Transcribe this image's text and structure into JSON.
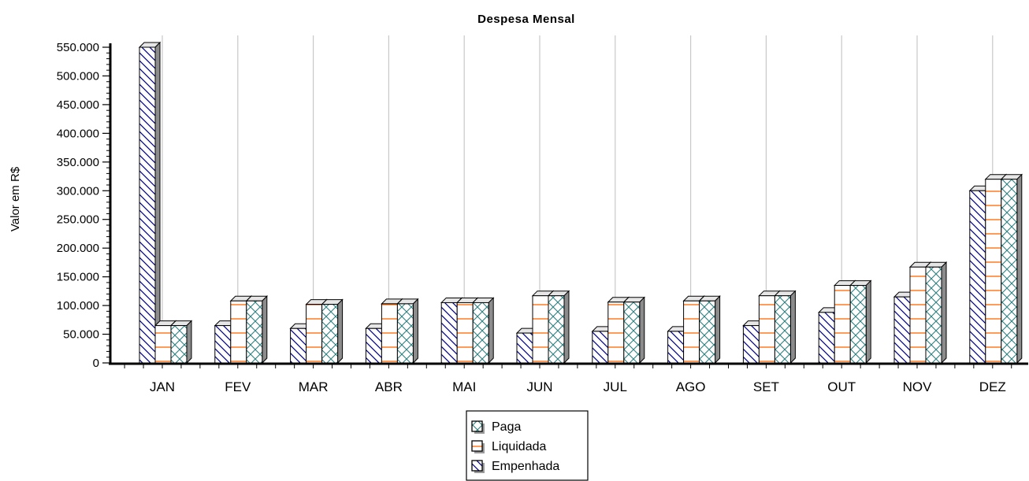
{
  "chart_data": {
    "type": "bar",
    "title": "Despesa Mensal",
    "xlabel": "",
    "ylabel": "Valor em R$",
    "ylim": [
      0,
      550000
    ],
    "yticks": [
      0,
      50000,
      100000,
      150000,
      200000,
      250000,
      300000,
      350000,
      400000,
      450000,
      500000,
      550000
    ],
    "ytick_labels": [
      "0",
      "50.000",
      "100.000",
      "150.000",
      "200.000",
      "250.000",
      "300.000",
      "350.000",
      "400.000",
      "450.000",
      "500.000",
      "550.000"
    ],
    "categories": [
      "JAN",
      "FEV",
      "MAR",
      "ABR",
      "MAI",
      "JUN",
      "JUL",
      "AGO",
      "SET",
      "OUT",
      "NOV",
      "DEZ"
    ],
    "grid": "vertical",
    "legend_position": "bottom-center",
    "series": [
      {
        "name": "Empenhada",
        "color": "#000080",
        "pattern": "diagonal",
        "values": [
          550000,
          65000,
          60000,
          60000,
          105000,
          52000,
          55000,
          55000,
          65000,
          88000,
          115000,
          300000
        ]
      },
      {
        "name": "Liquidada",
        "color": "#FF6600",
        "pattern": "horizontal",
        "values": [
          65000,
          108000,
          102000,
          103000,
          105000,
          117000,
          106000,
          108000,
          117000,
          135000,
          167000,
          320000
        ]
      },
      {
        "name": "Paga",
        "color": "#2F8080",
        "pattern": "crosshatch",
        "values": [
          65000,
          108000,
          102000,
          103000,
          105000,
          117000,
          106000,
          108000,
          117000,
          135000,
          167000,
          320000
        ]
      }
    ]
  }
}
